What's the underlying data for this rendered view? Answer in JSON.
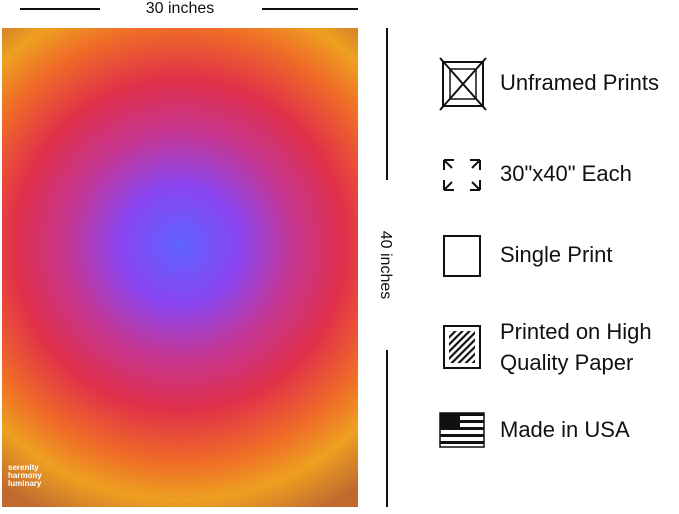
{
  "dimensions": {
    "width_label": "30 inches",
    "height_label": "40 inches"
  },
  "poster": {
    "lines": [
      "serenity",
      "harmony",
      "luminary"
    ]
  },
  "features": [
    {
      "lines": [
        "Unframed Prints"
      ]
    },
    {
      "lines": [
        "30\"x40\" Each"
      ]
    },
    {
      "lines": [
        "Single Print"
      ]
    },
    {
      "lines": [
        "Printed on High",
        "Quality Paper"
      ]
    },
    {
      "lines": [
        "Made in USA"
      ]
    }
  ]
}
